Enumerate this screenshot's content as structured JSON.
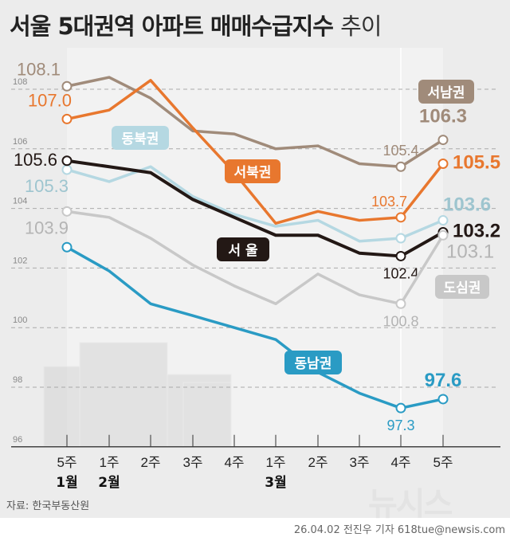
{
  "title": {
    "main": "서울 5대권역 아파트 매매수급지수",
    "suffix": "추이"
  },
  "source": "자료: 한국부동산원",
  "credit": "26.04.02 전진우 기자 618tue@newsis.com",
  "logo": "뉴시스",
  "chart_data": {
    "type": "line",
    "categories": [
      "5주",
      "1주",
      "2주",
      "3주",
      "4주",
      "1주",
      "2주",
      "3주",
      "4주",
      "5주"
    ],
    "month_labels": [
      {
        "index": 0,
        "label": "1월"
      },
      {
        "index": 1,
        "label": "2월"
      },
      {
        "index": 5,
        "label": "3월"
      }
    ],
    "ylim": [
      96,
      108
    ],
    "yticks": [
      96,
      98,
      100,
      102,
      104,
      106,
      108
    ],
    "grid": true,
    "series": [
      {
        "name": "서남권",
        "color": "#a08b7a",
        "values": [
          108.1,
          108.4,
          107.7,
          106.6,
          106.5,
          106.0,
          106.1,
          105.5,
          105.4,
          106.3
        ],
        "labels": {
          "0": "108.1",
          "8": "105.4",
          "9": "106.3"
        }
      },
      {
        "name": "서북권",
        "color": "#e8772e",
        "values": [
          107.0,
          107.3,
          108.3,
          106.7,
          105.2,
          103.5,
          103.9,
          103.6,
          103.7,
          105.5
        ],
        "labels": {
          "0": "107.0",
          "8": "103.7",
          "9": "105.5"
        }
      },
      {
        "name": "동북권",
        "color": "#b5d8e2",
        "values": [
          105.3,
          104.9,
          105.4,
          104.4,
          103.8,
          103.4,
          103.6,
          102.9,
          103.0,
          103.6
        ],
        "labels": {
          "0": "105.3",
          "9": "103.6"
        }
      },
      {
        "name": "서 울",
        "color": "#231815",
        "values": [
          105.6,
          105.4,
          105.2,
          104.3,
          103.7,
          103.1,
          103.1,
          102.5,
          102.4,
          103.2
        ],
        "labels": {
          "0": "105.6",
          "8": "102.4",
          "9": "103.2"
        }
      },
      {
        "name": "도심권",
        "color": "#c8c8c8",
        "values": [
          103.9,
          103.7,
          103.0,
          102.1,
          101.4,
          100.8,
          101.8,
          101.1,
          100.8,
          103.1
        ],
        "labels": {
          "0": "103.9",
          "8": "100.8",
          "9": "103.1"
        }
      },
      {
        "name": "동남권",
        "color": "#2a9bc4",
        "values": [
          102.7,
          101.9,
          100.8,
          100.4,
          100.0,
          99.6,
          98.5,
          97.8,
          97.3,
          97.6
        ],
        "labels": {
          "8": "97.3",
          "9": "97.6"
        }
      }
    ]
  }
}
